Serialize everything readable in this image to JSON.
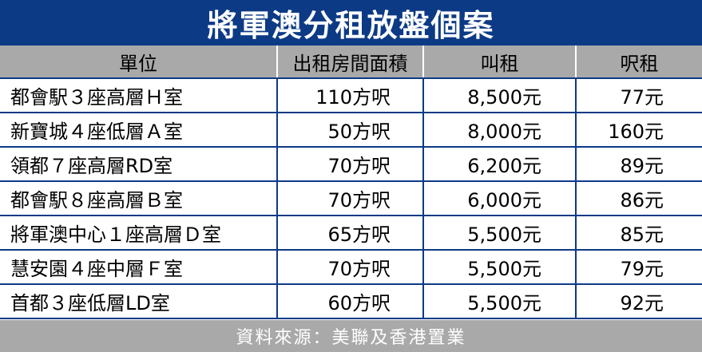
{
  "title": "將軍澳分租放盤個案",
  "headers": [
    "單位",
    "出租房間面積",
    "叫租",
    "呎租"
  ],
  "rows": [
    [
      "都會駅３座高層Ｈ室",
      "110方呎",
      "8,500元",
      "77元"
    ],
    [
      "新寶城４座低層Ａ室",
      "50方呎",
      "8,000元",
      "160元"
    ],
    [
      "領都７座高層RD室",
      "70方呎",
      "6,200元",
      "89元"
    ],
    [
      "都會駅８座高層Ｂ室",
      "70方呎",
      "6,000元",
      "86元"
    ],
    [
      "將軍澳中心１座高層Ｄ室",
      "65方呎",
      "5,500元",
      "85元"
    ],
    [
      "慧安園４座中層Ｆ室",
      "70方呎",
      "5,500元",
      "79元"
    ],
    [
      "首都３座低層LD室",
      "60方呎",
      "5,500元",
      "92元"
    ]
  ],
  "source": "資料來源：美聯及香港置業",
  "colors": {
    "title_bg": "#0d3a85",
    "header_bg": "#a9a9aa",
    "grid": "#0d3a85"
  }
}
